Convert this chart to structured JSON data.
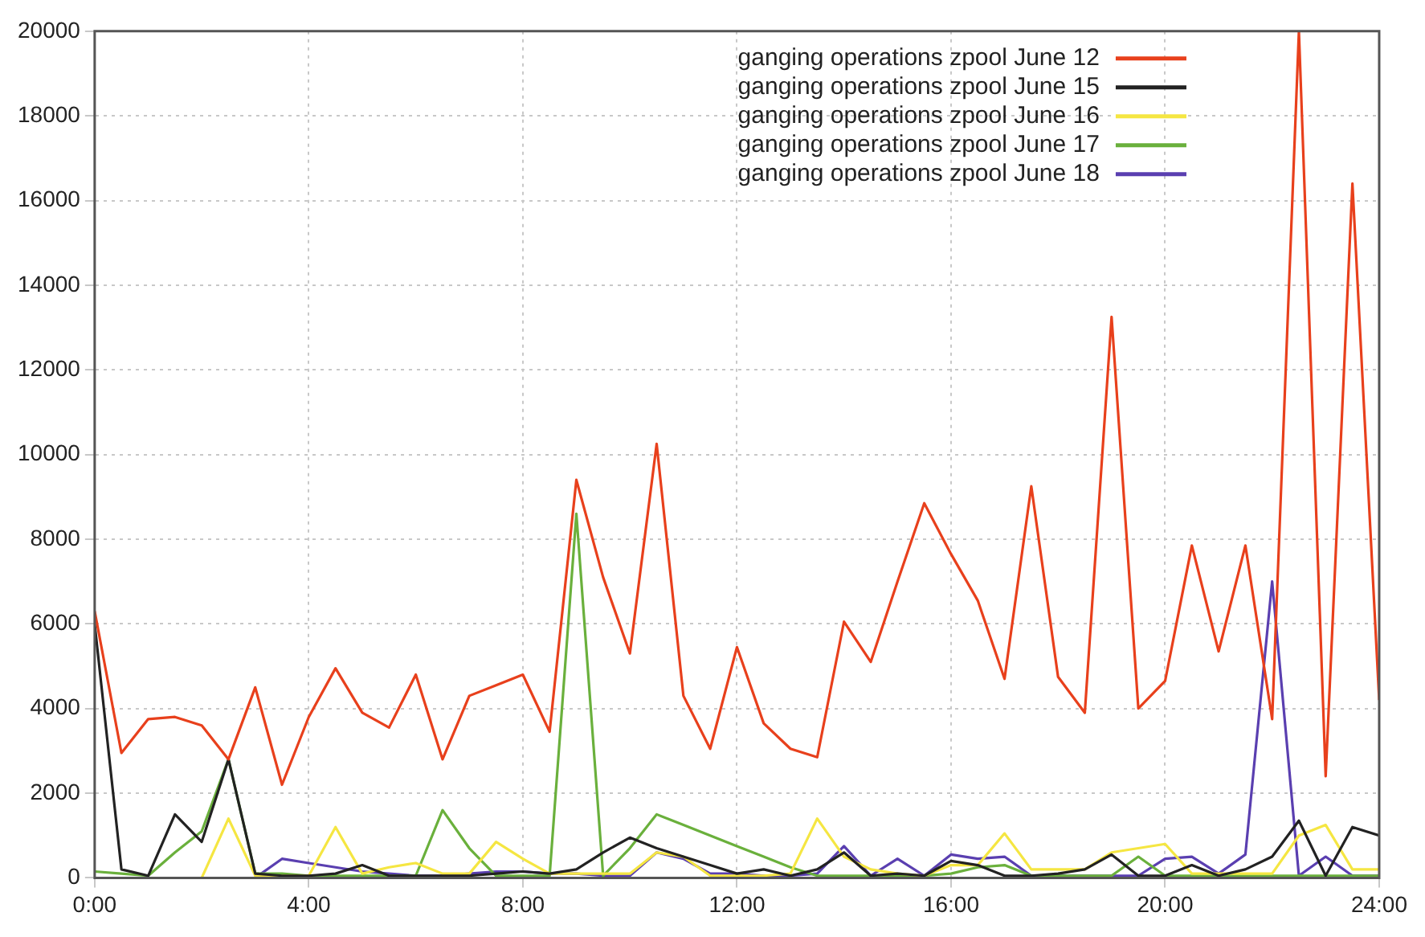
{
  "chart_data": {
    "type": "line",
    "x": [
      0,
      0.5,
      1,
      1.5,
      2,
      2.5,
      3,
      3.5,
      4,
      4.5,
      5,
      5.5,
      6,
      6.5,
      7,
      7.5,
      8,
      8.5,
      9,
      9.5,
      10,
      10.5,
      11,
      11.5,
      12,
      12.5,
      13,
      13.5,
      14,
      14.5,
      15,
      15.5,
      16,
      16.5,
      17,
      17.5,
      18,
      18.5,
      19,
      19.5,
      20,
      20.5,
      21,
      21.5,
      22,
      22.5,
      23,
      23.5,
      24
    ],
    "xlim": [
      0,
      24
    ],
    "xticks": [
      {
        "value": 0,
        "label": "0:00"
      },
      {
        "value": 4,
        "label": "4:00"
      },
      {
        "value": 8,
        "label": "8:00"
      },
      {
        "value": 12,
        "label": "12:00"
      },
      {
        "value": 16,
        "label": "16:00"
      },
      {
        "value": 20,
        "label": "20:00"
      },
      {
        "value": 24,
        "label": "24:00"
      }
    ],
    "ylim": [
      0,
      20000
    ],
    "yticks": [
      0,
      2000,
      4000,
      6000,
      8000,
      10000,
      12000,
      14000,
      16000,
      18000,
      20000
    ],
    "grid": true,
    "legend": "top right",
    "line_style": "solid",
    "marker": "none",
    "series": [
      {
        "name": "ganging operations zpool June 12",
        "color": "#e8401c",
        "values": [
          6300,
          2950,
          3750,
          3800,
          3600,
          2800,
          4500,
          2200,
          3800,
          4950,
          3900,
          3550,
          4800,
          2800,
          4300,
          4550,
          4800,
          3450,
          9400,
          7100,
          5300,
          10250,
          4300,
          3050,
          5450,
          3650,
          3050,
          2850,
          6050,
          5100,
          7000,
          8850,
          7650,
          6550,
          4700,
          9250,
          4750,
          3900,
          13250,
          4000,
          4650,
          7850,
          5350,
          7850,
          3750,
          20000,
          2400,
          16400,
          4200
        ]
      },
      {
        "name": "ganging operations zpool June 15",
        "color": "#222222",
        "values": [
          6000,
          200,
          50,
          1500,
          850,
          2800,
          100,
          50,
          50,
          100,
          300,
          50,
          50,
          50,
          50,
          100,
          150,
          100,
          200,
          600,
          950,
          700,
          500,
          300,
          100,
          200,
          50,
          200,
          600,
          50,
          100,
          50,
          400,
          300,
          50,
          50,
          100,
          200,
          550,
          50,
          50,
          300,
          50,
          200,
          500,
          1350,
          50,
          1200,
          1000
        ]
      },
      {
        "name": "ganging operations zpool June 16",
        "color": "#f5e642",
        "values": [
          null,
          null,
          null,
          null,
          0,
          1400,
          50,
          50,
          50,
          1200,
          100,
          250,
          350,
          100,
          100,
          850,
          450,
          100,
          100,
          100,
          100,
          600,
          500,
          50,
          50,
          50,
          100,
          1400,
          500,
          200,
          100,
          50,
          300,
          300,
          1050,
          200,
          200,
          200,
          600,
          700,
          800,
          100,
          100,
          100,
          100,
          1000,
          1250,
          200,
          200
        ]
      },
      {
        "name": "ganging operations zpool June 17",
        "color": "#6ab03c",
        "values": [
          150,
          100,
          50,
          600,
          1100,
          2800,
          100,
          100,
          50,
          50,
          50,
          50,
          50,
          1600,
          700,
          50,
          50,
          50,
          8600,
          50,
          700,
          1500,
          1250,
          1000,
          750,
          500,
          250,
          50,
          50,
          50,
          50,
          50,
          100,
          250,
          300,
          50,
          50,
          50,
          50,
          500,
          50,
          50,
          50,
          50,
          50,
          50,
          50,
          50,
          50
        ]
      },
      {
        "name": "ganging operations zpool June 18",
        "color": "#5a3fb0",
        "values": [
          null,
          null,
          null,
          null,
          null,
          null,
          0,
          450,
          350,
          250,
          150,
          100,
          50,
          50,
          100,
          150,
          150,
          100,
          100,
          50,
          50,
          600,
          450,
          100,
          100,
          50,
          50,
          100,
          750,
          50,
          450,
          50,
          550,
          450,
          500,
          50,
          50,
          50,
          50,
          50,
          450,
          500,
          100,
          550,
          7000,
          50,
          500,
          50,
          50
        ]
      }
    ]
  }
}
